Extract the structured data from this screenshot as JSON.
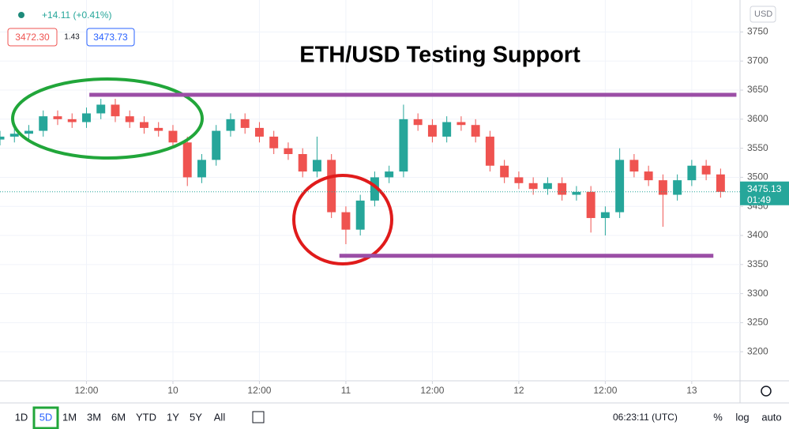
{
  "chart_data": {
    "type": "candlestick",
    "title": "ETH/USD Testing Support",
    "x": [
      -24,
      -22,
      -20,
      -18,
      -16,
      -14,
      -12,
      -10,
      -8,
      -6,
      -4,
      -2,
      0,
      2,
      4,
      6,
      8,
      10,
      12,
      14,
      16,
      18,
      20,
      22,
      24,
      26,
      28,
      30,
      32,
      34,
      36,
      38,
      40,
      42,
      44,
      46,
      48,
      50,
      52,
      54,
      56,
      58,
      60,
      62,
      64,
      66,
      68,
      70,
      72,
      74,
      76
    ],
    "open": [
      3565,
      3570,
      3575,
      3580,
      3605,
      3600,
      3595,
      3610,
      3625,
      3605,
      3595,
      3585,
      3580,
      3560,
      3500,
      3530,
      3580,
      3600,
      3585,
      3570,
      3550,
      3540,
      3510,
      3530,
      3440,
      3410,
      3460,
      3500,
      3510,
      3600,
      3590,
      3570,
      3595,
      3590,
      3570,
      3520,
      3500,
      3490,
      3480,
      3490,
      3470,
      3475,
      3430,
      3440,
      3530,
      3510,
      3495,
      3470,
      3495,
      3520,
      3505
    ],
    "high": [
      3580,
      3585,
      3590,
      3615,
      3615,
      3610,
      3620,
      3635,
      3635,
      3615,
      3605,
      3595,
      3590,
      3570,
      3540,
      3590,
      3610,
      3610,
      3595,
      3580,
      3560,
      3550,
      3570,
      3540,
      3450,
      3470,
      3510,
      3520,
      3625,
      3610,
      3600,
      3605,
      3605,
      3600,
      3580,
      3530,
      3510,
      3500,
      3500,
      3500,
      3485,
      3485,
      3450,
      3550,
      3540,
      3520,
      3505,
      3505,
      3530,
      3530,
      3515
    ],
    "low": [
      3555,
      3560,
      3565,
      3570,
      3590,
      3585,
      3585,
      3600,
      3595,
      3585,
      3575,
      3570,
      3550,
      3485,
      3490,
      3520,
      3570,
      3575,
      3560,
      3540,
      3530,
      3500,
      3500,
      3430,
      3385,
      3400,
      3450,
      3490,
      3500,
      3580,
      3560,
      3560,
      3580,
      3560,
      3510,
      3490,
      3480,
      3470,
      3470,
      3460,
      3460,
      3405,
      3400,
      3430,
      3500,
      3485,
      3415,
      3460,
      3485,
      3495,
      3465
    ],
    "close": [
      3570,
      3575,
      3580,
      3605,
      3600,
      3595,
      3610,
      3625,
      3605,
      3595,
      3585,
      3580,
      3560,
      3500,
      3530,
      3580,
      3600,
      3585,
      3570,
      3550,
      3540,
      3510,
      3530,
      3440,
      3410,
      3460,
      3500,
      3510,
      3600,
      3590,
      3570,
      3595,
      3590,
      3570,
      3520,
      3500,
      3490,
      3480,
      3490,
      3470,
      3475,
      3430,
      3440,
      3530,
      3510,
      3495,
      3470,
      3495,
      3520,
      3505,
      3475
    ],
    "up_color": "#26a69a",
    "down_color": "#ef5350",
    "xlim": [
      -24,
      78.7
    ],
    "xticks": [
      {
        "value": -12,
        "label": "12:00"
      },
      {
        "value": 0,
        "label": "10"
      },
      {
        "value": 12,
        "label": "12:00"
      },
      {
        "value": 24,
        "label": "11"
      },
      {
        "value": 36,
        "label": "12:00"
      },
      {
        "value": 48,
        "label": "12"
      },
      {
        "value": 60,
        "label": "12:00"
      },
      {
        "value": 72,
        "label": "13"
      }
    ],
    "ylim": [
      3150,
      3805
    ],
    "yticks": [
      3200,
      3250,
      3300,
      3350,
      3400,
      3450,
      3500,
      3550,
      3600,
      3650,
      3700,
      3750
    ],
    "grid": true,
    "resistance": {
      "value": 3642,
      "x": [
        -11.6,
        78.2
      ],
      "color": "#9b4ea6"
    },
    "support": {
      "value": 3365,
      "x": [
        23.1,
        75
      ],
      "color": "#9b4ea6"
    },
    "last_price": 3475.13,
    "last_price_label": "3475.13",
    "countdown": "01:49",
    "currency": "USD"
  },
  "ui": {
    "change": "+14.11 (+0.41%)",
    "bid": "3472.30",
    "spread": "1.43",
    "ask": "3473.73",
    "ranges": [
      "1D",
      "5D",
      "1M",
      "3M",
      "6M",
      "YTD",
      "1Y",
      "5Y",
      "All"
    ],
    "clock": "06:23:11 (UTC)",
    "scale_options": [
      "%",
      "log",
      "auto"
    ]
  }
}
